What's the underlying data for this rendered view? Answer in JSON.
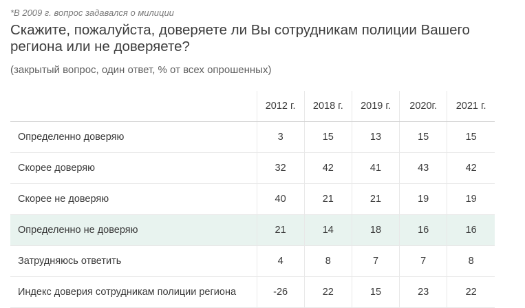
{
  "footnote": "*В 2009 г. вопрос задавался о милиции",
  "question": "Скажите, пожалуйста, доверяете ли Вы сотрудникам полиции Вашего региона или не доверяете?",
  "subtitle": "(закрытый вопрос, один ответ, % от всех опрошенных)",
  "table": {
    "columns": [
      "2012 г.",
      "2018 г.",
      "2019 г.",
      "2020г.",
      "2021 г."
    ],
    "rows": [
      {
        "label": "Определенно доверяю",
        "values": [
          "3",
          "15",
          "13",
          "15",
          "15"
        ]
      },
      {
        "label": "Скорее доверяю",
        "values": [
          "32",
          "42",
          "41",
          "43",
          "42"
        ]
      },
      {
        "label": "Скорее не доверяю",
        "values": [
          "40",
          "21",
          "21",
          "19",
          "19"
        ]
      },
      {
        "label": "Определенно не доверяю",
        "values": [
          "21",
          "14",
          "18",
          "16",
          "16"
        ]
      },
      {
        "label": "Затрудняюсь ответить",
        "values": [
          "4",
          "8",
          "7",
          "7",
          "8"
        ]
      },
      {
        "label": "Индекс доверия сотрудникам полиции региона",
        "values": [
          "-26",
          "22",
          "15",
          "23",
          "22"
        ]
      }
    ]
  },
  "colors": {
    "highlight_row": "#e8f3ef"
  }
}
